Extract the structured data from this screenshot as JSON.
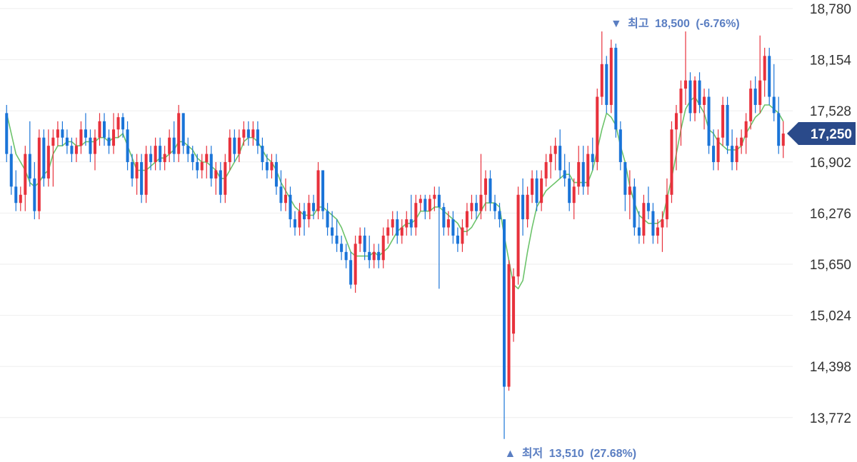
{
  "chart_data": {
    "type": "candlestick",
    "colors": {
      "up": "#e8313c",
      "down": "#1a74d8",
      "ma5": "#6cc36a",
      "ma20": "#f28b8b",
      "ma60": "#f7b77a",
      "ma120": "#b88af0",
      "grid": "#eeeeee",
      "annotation": "#5a7ec2",
      "current_badge": "#2a4a8a"
    },
    "y_axis": {
      "ticks": [
        "18,780",
        "18,154",
        "17,528",
        "16,902",
        "16,276",
        "15,650",
        "15,024",
        "14,398",
        "13,772"
      ],
      "tick_values": [
        18780,
        18154,
        17528,
        16902,
        16276,
        15650,
        15024,
        14398,
        13772
      ],
      "ylim": [
        13400,
        18780
      ]
    },
    "current_price": {
      "label": "17,250",
      "value": 17250
    },
    "high_marker": {
      "arrow": "▼",
      "prefix": "최고",
      "value": "18,500",
      "pct": "(-6.76%)",
      "price": 18500,
      "index": 132
    },
    "low_marker": {
      "arrow": "▲",
      "prefix": "최저",
      "value": "13,510",
      "pct": "(27.68%)",
      "price": 13510,
      "index": 108
    },
    "candles": [
      [
        17500,
        17600,
        16900,
        17000
      ],
      [
        17000,
        17100,
        16500,
        16600
      ],
      [
        16600,
        16800,
        16300,
        16400
      ],
      [
        16400,
        16600,
        16300,
        16500
      ],
      [
        16500,
        17100,
        16300,
        17000
      ],
      [
        17000,
        17400,
        16600,
        16700
      ],
      [
        16700,
        16900,
        16200,
        16300
      ],
      [
        16300,
        17300,
        16200,
        17200
      ],
      [
        17200,
        17300,
        16600,
        16700
      ],
      [
        16700,
        17300,
        16600,
        17100
      ],
      [
        17100,
        17300,
        16600,
        17200
      ],
      [
        17200,
        17400,
        17100,
        17300
      ],
      [
        17300,
        17400,
        17100,
        17200
      ],
      [
        17200,
        17300,
        17000,
        17100
      ],
      [
        17100,
        17200,
        16900,
        17000
      ],
      [
        17000,
        17200,
        16900,
        17100
      ],
      [
        17100,
        17400,
        17000,
        17300
      ],
      [
        17300,
        17500,
        17100,
        17200
      ],
      [
        17200,
        17300,
        16900,
        17000
      ],
      [
        17000,
        17300,
        16800,
        17200
      ],
      [
        17200,
        17500,
        17100,
        17400
      ],
      [
        17400,
        17500,
        17100,
        17200
      ],
      [
        17200,
        17300,
        17000,
        17100
      ],
      [
        17100,
        17500,
        17000,
        17300
      ],
      [
        17300,
        17500,
        17200,
        17450
      ],
      [
        17450,
        17500,
        17200,
        17300
      ],
      [
        17300,
        17400,
        16800,
        16900
      ],
      [
        16900,
        17000,
        16600,
        16700
      ],
      [
        16700,
        17000,
        16500,
        16900
      ],
      [
        16900,
        17000,
        16400,
        16500
      ],
      [
        16500,
        17100,
        16400,
        17000
      ],
      [
        17000,
        17100,
        16800,
        16900
      ],
      [
        16900,
        17200,
        16800,
        17100
      ],
      [
        17100,
        17200,
        16800,
        16900
      ],
      [
        16900,
        17100,
        16800,
        17000
      ],
      [
        17000,
        17300,
        16900,
        17200
      ],
      [
        17200,
        17400,
        16900,
        17000
      ],
      [
        17000,
        17600,
        16900,
        17500
      ],
      [
        17500,
        17500,
        17000,
        17100
      ],
      [
        17100,
        17200,
        16900,
        17000
      ],
      [
        17000,
        17100,
        16800,
        16900
      ],
      [
        16900,
        17000,
        16700,
        16800
      ],
      [
        16800,
        17000,
        16700,
        16900
      ],
      [
        16900,
        17100,
        16700,
        17000
      ],
      [
        17000,
        17100,
        16600,
        16700
      ],
      [
        16700,
        16900,
        16500,
        16800
      ],
      [
        16800,
        16900,
        16400,
        16500
      ],
      [
        16500,
        17000,
        16400,
        16900
      ],
      [
        16900,
        17300,
        16800,
        17200
      ],
      [
        17200,
        17300,
        16900,
        17000
      ],
      [
        17000,
        17300,
        16900,
        17200
      ],
      [
        17200,
        17400,
        17100,
        17300
      ],
      [
        17300,
        17400,
        17100,
        17200
      ],
      [
        17200,
        17400,
        17100,
        17300
      ],
      [
        17300,
        17400,
        17000,
        17100
      ],
      [
        17100,
        17200,
        16800,
        16900
      ],
      [
        16900,
        17000,
        16700,
        16800
      ],
      [
        16800,
        17000,
        16700,
        16900
      ],
      [
        16900,
        17000,
        16500,
        16600
      ],
      [
        16600,
        16800,
        16300,
        16400
      ],
      [
        16400,
        16700,
        16300,
        16500
      ],
      [
        16500,
        16600,
        16100,
        16200
      ],
      [
        16200,
        16300,
        16000,
        16100
      ],
      [
        16100,
        16400,
        16000,
        16300
      ],
      [
        16300,
        16400,
        16000,
        16200
      ],
      [
        16200,
        16500,
        16100,
        16400
      ],
      [
        16400,
        16500,
        16200,
        16300
      ],
      [
        16300,
        16900,
        16200,
        16800
      ],
      [
        16800,
        16800,
        16200,
        16300
      ],
      [
        16300,
        16400,
        16000,
        16100
      ],
      [
        16100,
        16300,
        15900,
        16000
      ],
      [
        16000,
        16200,
        15800,
        15900
      ],
      [
        15900,
        16000,
        15700,
        15800
      ],
      [
        15800,
        15900,
        15600,
        15700
      ],
      [
        15700,
        15800,
        15350,
        15400
      ],
      [
        15400,
        16000,
        15300,
        15900
      ],
      [
        15900,
        16100,
        15800,
        16000
      ],
      [
        16000,
        16100,
        15700,
        15800
      ],
      [
        15800,
        16000,
        15600,
        15700
      ],
      [
        15700,
        15900,
        15600,
        15800
      ],
      [
        15800,
        15900,
        15600,
        15700
      ],
      [
        15700,
        16100,
        15600,
        16000
      ],
      [
        16000,
        16200,
        15900,
        16100
      ],
      [
        16100,
        16300,
        16000,
        16200
      ],
      [
        16200,
        16300,
        15900,
        16000
      ],
      [
        16000,
        16200,
        15900,
        16100
      ],
      [
        16100,
        16300,
        16000,
        16200
      ],
      [
        16200,
        16500,
        16000,
        16100
      ],
      [
        16100,
        16500,
        16000,
        16400
      ],
      [
        16400,
        16500,
        16300,
        16450
      ],
      [
        16450,
        16500,
        16200,
        16300
      ],
      [
        16300,
        16500,
        16200,
        16450
      ],
      [
        16450,
        16600,
        16300,
        16500
      ],
      [
        16500,
        16600,
        15350,
        16350
      ],
      [
        16350,
        16400,
        16000,
        16100
      ],
      [
        16100,
        16300,
        16000,
        16200
      ],
      [
        16200,
        16300,
        15900,
        16000
      ],
      [
        16000,
        16100,
        15800,
        15900
      ],
      [
        15900,
        16200,
        15800,
        16100
      ],
      [
        16100,
        16400,
        16000,
        16300
      ],
      [
        16300,
        16500,
        16200,
        16400
      ],
      [
        16400,
        16500,
        16200,
        16300
      ],
      [
        16300,
        17000,
        16200,
        16500
      ],
      [
        16500,
        16800,
        16300,
        16700
      ],
      [
        16700,
        16800,
        16300,
        16400
      ],
      [
        16400,
        16500,
        16200,
        16300
      ],
      [
        16300,
        16400,
        16100,
        16200
      ],
      [
        16200,
        16200,
        13510,
        14150
      ],
      [
        14150,
        15700,
        14100,
        15650
      ],
      [
        14800,
        15600,
        14700,
        15500
      ],
      [
        15500,
        16600,
        15400,
        16500
      ],
      [
        16500,
        16700,
        16000,
        16200
      ],
      [
        16200,
        16600,
        16100,
        16500
      ],
      [
        16500,
        16800,
        16400,
        16700
      ],
      [
        16700,
        16800,
        16300,
        16400
      ],
      [
        16400,
        16800,
        16300,
        16700
      ],
      [
        16700,
        17000,
        16600,
        16900
      ],
      [
        16900,
        17100,
        16700,
        17000
      ],
      [
        17000,
        17200,
        16800,
        17100
      ],
      [
        17100,
        17300,
        16700,
        16800
      ],
      [
        16800,
        17000,
        16600,
        16700
      ],
      [
        16700,
        16900,
        16300,
        16400
      ],
      [
        16400,
        16700,
        16200,
        16600
      ],
      [
        16600,
        17100,
        16500,
        16900
      ],
      [
        16900,
        17100,
        16500,
        16600
      ],
      [
        16600,
        17100,
        16500,
        17000
      ],
      [
        17000,
        17200,
        16800,
        16900
      ],
      [
        16900,
        17800,
        16800,
        17700
      ],
      [
        17700,
        18500,
        17600,
        18100
      ],
      [
        18100,
        18200,
        17500,
        17600
      ],
      [
        17600,
        18400,
        17500,
        18300
      ],
      [
        18300,
        18350,
        17200,
        17300
      ],
      [
        17300,
        17400,
        16800,
        16900
      ],
      [
        16900,
        16900,
        16300,
        16500
      ],
      [
        16500,
        16800,
        16200,
        16600
      ],
      [
        16600,
        16700,
        16000,
        16100
      ],
      [
        16100,
        16300,
        15900,
        16000
      ],
      [
        16000,
        16500,
        15900,
        16400
      ],
      [
        16400,
        16600,
        16200,
        16300
      ],
      [
        16300,
        16400,
        15900,
        16000
      ],
      [
        16000,
        16200,
        15900,
        16100
      ],
      [
        16100,
        16300,
        15800,
        16200
      ],
      [
        16200,
        16700,
        16100,
        16500
      ],
      [
        16500,
        17400,
        16400,
        17300
      ],
      [
        17300,
        17600,
        16800,
        17500
      ],
      [
        17500,
        17900,
        17100,
        17800
      ],
      [
        17800,
        18500,
        17600,
        17900
      ],
      [
        17900,
        18000,
        17400,
        17500
      ],
      [
        17500,
        17950,
        17400,
        17900
      ],
      [
        17900,
        18000,
        17500,
        17600
      ],
      [
        17600,
        17800,
        17300,
        17700
      ],
      [
        17700,
        17800,
        17000,
        17100
      ],
      [
        17100,
        17300,
        16800,
        16900
      ],
      [
        16900,
        17300,
        16800,
        17200
      ],
      [
        17200,
        17700,
        17100,
        17600
      ],
      [
        17600,
        17700,
        17000,
        17100
      ],
      [
        17100,
        17300,
        16800,
        16900
      ],
      [
        16900,
        17200,
        16800,
        17100
      ],
      [
        17100,
        17300,
        17000,
        17200
      ],
      [
        17200,
        17500,
        17000,
        17400
      ],
      [
        17400,
        17900,
        17300,
        17800
      ],
      [
        17800,
        17950,
        17500,
        17600
      ],
      [
        17600,
        18450,
        17500,
        17900
      ],
      [
        17900,
        18300,
        17700,
        18200
      ],
      [
        18200,
        18300,
        17600,
        17700
      ],
      [
        17700,
        18100,
        17400,
        17500
      ],
      [
        17500,
        17700,
        17000,
        17100
      ],
      [
        17100,
        17400,
        16950,
        17250
      ]
    ],
    "ma5": [
      17500,
      17250,
      17000,
      16900,
      16800,
      16650,
      16600,
      16650,
      16750,
      16800,
      17000,
      17100,
      17100,
      17150,
      17150,
      17100,
      17100,
      17150,
      17150,
      17150,
      17200,
      17200,
      17150,
      17200,
      17200,
      17250,
      17100,
      16950,
      16800,
      16800,
      16800,
      16850,
      16900,
      16950,
      16950,
      17000,
      17050,
      17150,
      17150,
      17100,
      17050,
      16950,
      16900,
      16900,
      16850,
      16800,
      16700,
      16700,
      16800,
      16900,
      17000,
      17150,
      17200,
      17200,
      17150,
      17050,
      16950,
      16900,
      16800,
      16650,
      16550,
      16450,
      16350,
      16300,
      16250,
      16250,
      16250,
      16350,
      16350,
      16300,
      16250,
      16200,
      16100,
      15950,
      15800,
      15750,
      15750,
      15750,
      15750,
      15800,
      15750,
      15800,
      15850,
      15950,
      16050,
      16100,
      16150,
      16150,
      16200,
      16300,
      16300,
      16300,
      16350,
      16350,
      16300,
      16250,
      16200,
      16150,
      16050,
      16050,
      16100,
      16200,
      16300,
      16400,
      16400,
      16400,
      16350,
      16000,
      15700,
      15400,
      15350,
      15450,
      15800,
      16100,
      16350,
      16450,
      16550,
      16600,
      16650,
      16700,
      16750,
      16750,
      16650,
      16650,
      16650,
      16650,
      16800,
      17050,
      17300,
      17500,
      17450,
      17350,
      17100,
      16900,
      16600,
      16400,
      16250,
      16200,
      16150,
      16150,
      16150,
      16200,
      16450,
      16700,
      17000,
      17300,
      17550,
      17650,
      17700,
      17600,
      17500,
      17300,
      17250,
      17150,
      17100,
      17050,
      17050,
      17050,
      17100,
      17250,
      17350,
      17450,
      17500,
      17600,
      17600,
      17550,
      17500,
      17400
    ]
  }
}
